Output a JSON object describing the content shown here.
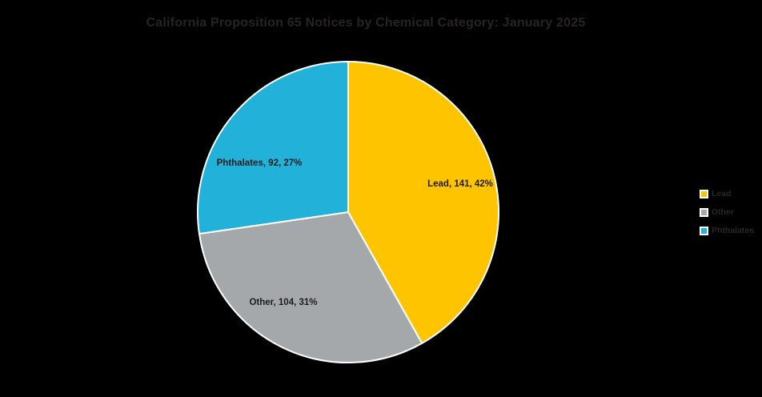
{
  "title": "California Proposition 65 Notices by Chemical Category: January 2025",
  "chart_data": {
    "type": "pie",
    "title": "California Proposition 65 Notices by Chemical Category: January 2025",
    "categories": [
      "Lead",
      "Other",
      "Phthalates"
    ],
    "values": [
      141,
      104,
      92
    ],
    "percentages": [
      "42%",
      "31%",
      "27%"
    ],
    "slice_labels": [
      "Lead, 141, 42%",
      "Other, 104, 31%",
      "Phthalates, 92, 27%"
    ],
    "colors": [
      "#ffc400",
      "#a5a8ab",
      "#22b2d9"
    ],
    "slice_border_color": "#ffffff",
    "background": "#000000",
    "start_angle_deg": 0,
    "direction": "clockwise",
    "legend_position": "right",
    "legend_items": [
      "Lead",
      "Other",
      "Phthalates"
    ],
    "label_format": "category, value, percent"
  }
}
